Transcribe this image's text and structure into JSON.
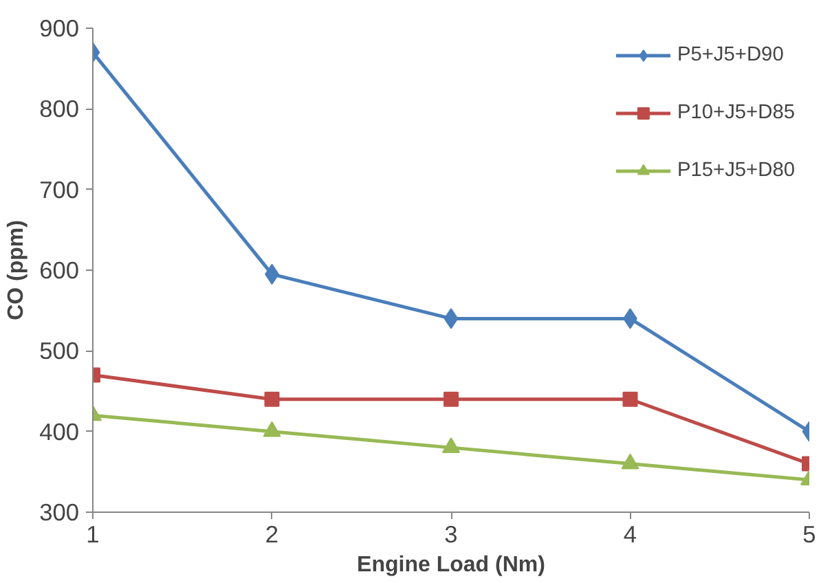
{
  "chart_data": {
    "type": "line",
    "xlabel": "Engine Load (Nm)",
    "ylabel": "CO (ppm)",
    "x": [
      1,
      2,
      3,
      4,
      5
    ],
    "xlim": [
      1,
      5
    ],
    "xticks": [
      1,
      2,
      3,
      4,
      5
    ],
    "ylim": [
      300,
      900
    ],
    "yticks": [
      300,
      400,
      500,
      600,
      700,
      800,
      900
    ],
    "grid": false,
    "legend": "top right",
    "line_style": "solid",
    "series": [
      {
        "name": "P5+J5+D90",
        "color": "#4a7ebb",
        "marker": "diamond",
        "values": [
          870,
          595,
          540,
          540,
          400
        ]
      },
      {
        "name": "P10+J5+D85",
        "color": "#be4b48",
        "marker": "square",
        "values": [
          470,
          440,
          440,
          440,
          360
        ]
      },
      {
        "name": "P15+J5+D80",
        "color": "#98b954",
        "marker": "triangle",
        "values": [
          420,
          400,
          380,
          360,
          340
        ]
      }
    ]
  }
}
